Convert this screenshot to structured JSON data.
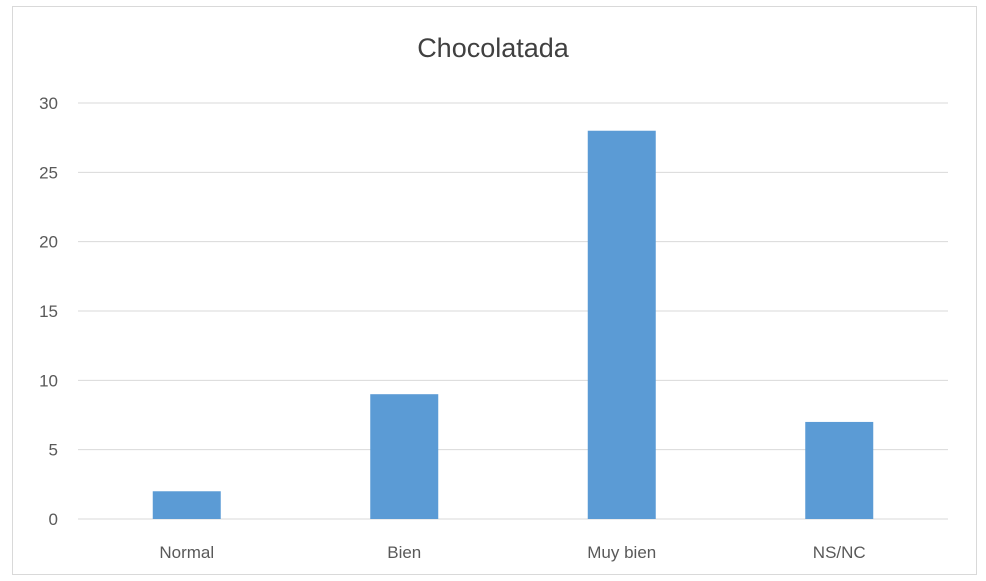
{
  "chart_data": {
    "type": "bar",
    "title": "Chocolatada",
    "categories": [
      "Normal",
      "Bien",
      "Muy bien",
      "NS/NC"
    ],
    "values": [
      2,
      9,
      28,
      7
    ],
    "ylim": [
      0,
      30
    ],
    "yticks": [
      0,
      5,
      10,
      15,
      20,
      25,
      30
    ],
    "xlabel": "",
    "ylabel": "",
    "grid": true,
    "legend": "none",
    "bar_color": "#5b9bd5",
    "grid_color": "#d9d9d9"
  }
}
